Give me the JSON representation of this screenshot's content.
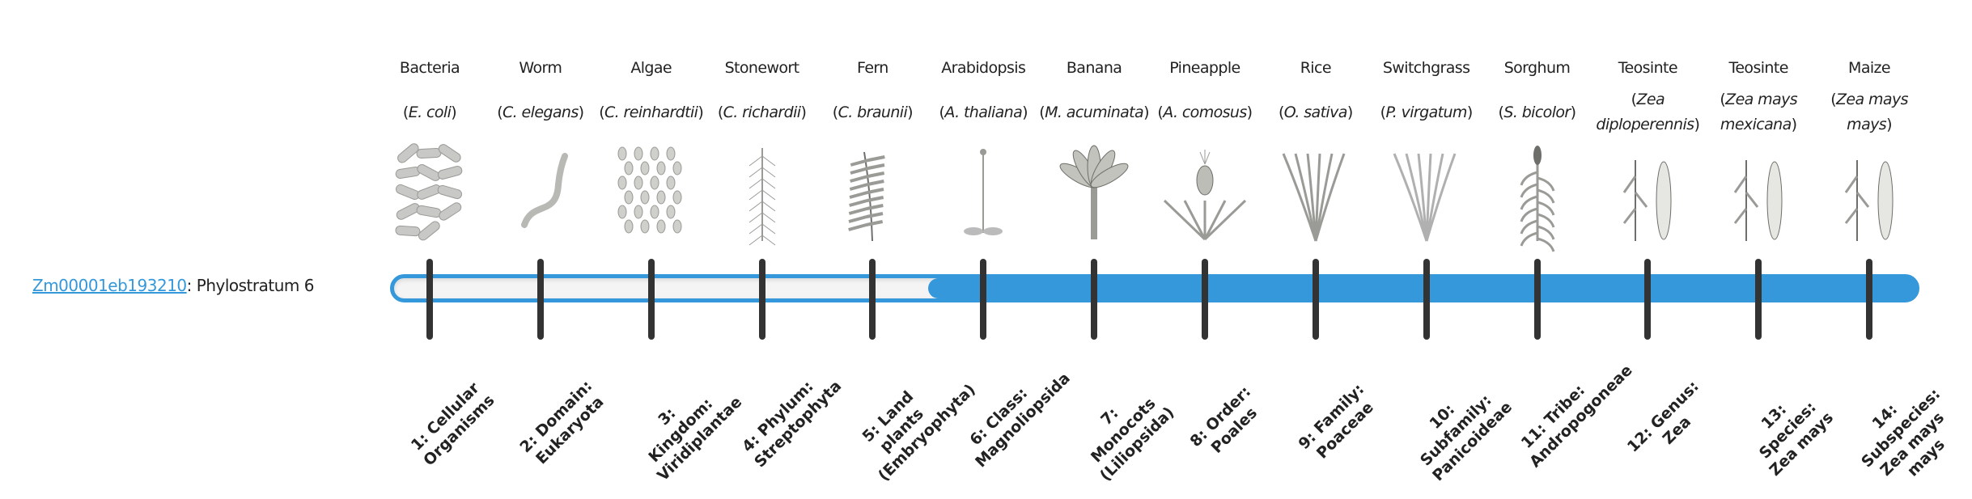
{
  "gene": {
    "id": "Zm00001eb193210",
    "separator": ": ",
    "label": "Phylostratum 6"
  },
  "phylostratum": 6,
  "accent_color": "#3498db",
  "organisms": [
    {
      "name": "Bacteria",
      "sci_pre": "(",
      "sci": "E. coli",
      "sci_post": ")",
      "icon": "bacteria-icon"
    },
    {
      "name": "Worm",
      "sci_pre": "(",
      "sci": "C. elegans",
      "sci_post": ")",
      "icon": "worm-icon"
    },
    {
      "name": "Algae",
      "sci_pre": "(",
      "sci": "C. reinhardtii",
      "sci_post": ")",
      "icon": "algae-icon"
    },
    {
      "name": "Stonewort",
      "sci_pre": "(",
      "sci": "C. richardii",
      "sci_post": ")",
      "icon": "stonewort-icon"
    },
    {
      "name": "Fern",
      "sci_pre": "(",
      "sci": "C. braunii",
      "sci_post": ")",
      "icon": "fern-icon"
    },
    {
      "name": "Arabidopsis",
      "sci_pre": "(",
      "sci": "A. thaliana",
      "sci_post": ")",
      "icon": "arabidopsis-icon"
    },
    {
      "name": "Banana",
      "sci_pre": "(",
      "sci": "M. acuminata",
      "sci_post": ")",
      "icon": "banana-icon"
    },
    {
      "name": "Pineapple",
      "sci_pre": "(",
      "sci": "A. comosus",
      "sci_post": ")",
      "icon": "pineapple-icon"
    },
    {
      "name": "Rice",
      "sci_pre": "(",
      "sci": "O. sativa",
      "sci_post": ")",
      "icon": "rice-icon"
    },
    {
      "name": "Switchgrass",
      "sci_pre": "(",
      "sci": "P. virgatum",
      "sci_post": ")",
      "icon": "switchgrass-icon"
    },
    {
      "name": "Sorghum",
      "sci_pre": "(",
      "sci": "S. bicolor",
      "sci_post": ")",
      "icon": "sorghum-icon"
    },
    {
      "name": "Teosinte",
      "sci_pre": "(",
      "sci": "Zea diploperennis",
      "sci_post": ")",
      "icon": "teosinte-icon"
    },
    {
      "name": "Teosinte",
      "sci_pre": "(",
      "sci": "Zea mays mexicana",
      "sci_post": ")",
      "icon": "teosinte-icon"
    },
    {
      "name": "Maize",
      "sci_pre": "(",
      "sci": "Zea mays mays",
      "sci_post": ")",
      "icon": "maize-icon"
    }
  ],
  "strata": [
    "1: Cellular Organisms",
    "2: Domain: Eukaryota",
    "3: Kingdom: Viridiplantae",
    "4: Phylum: Streptophyta",
    "5: Land plants (Embryophyta)",
    "6: Class: Magnoliopsida",
    "7: Monocots (Liliopsida)",
    "8: Order: Poales",
    "9: Family: Poaceae",
    "10: Subfamily: Panicoideae",
    "11: Tribe: Andropogoneae",
    "12: Genus: Zea",
    "13: Species: Zea mays",
    "14: Subspecies: Zea mays mays"
  ]
}
